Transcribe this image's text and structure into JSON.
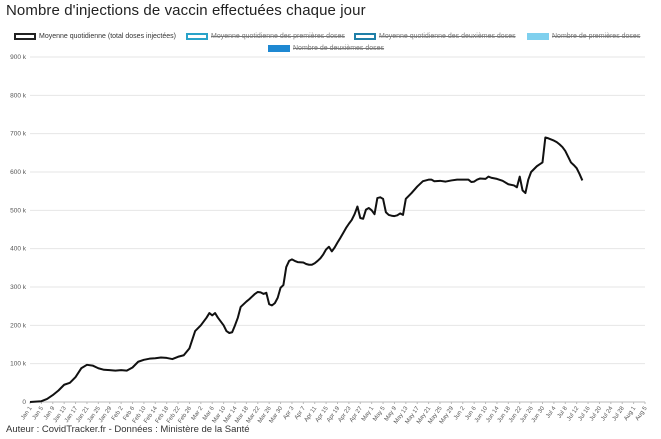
{
  "title": "Nombre d'injections de vaccin effectuées chaque jour",
  "credit": "Auteur : CovidTracker.fr - Données : Ministère de la Santé",
  "legend": [
    {
      "label": "Moyenne quotidienne (total doses injectées)",
      "style": "outline",
      "color": "#222222",
      "hidden": false
    },
    {
      "label": "Moyenne quotidienne des premières doses",
      "style": "outline",
      "color": "#29a3c9",
      "hidden": true
    },
    {
      "label": "Moyenne quotidienne des deuxièmes doses",
      "style": "outline",
      "color": "#1f7fa8",
      "hidden": true
    },
    {
      "label": "Nombre de premières doses",
      "style": "fill",
      "color": "#7fd0ee",
      "hidden": true
    },
    {
      "label": "Nombre de deuxièmes doses",
      "style": "fill",
      "color": "#1e88d2",
      "hidden": true
    }
  ],
  "chart_data": {
    "type": "line",
    "y_ticks": [
      "0",
      "100 k",
      "200 k",
      "300 k",
      "400 k",
      "500 k",
      "600 k",
      "700 k",
      "800 k",
      "900 k"
    ],
    "ylim": [
      0,
      900
    ],
    "x_ticks": [
      "Jan 1",
      "Jan 5",
      "Jan 9",
      "Jan 13",
      "Jan 17",
      "Jan 21",
      "Jan 25",
      "Jan 29",
      "Feb 2",
      "Feb 6",
      "Feb 10",
      "Feb 14",
      "Feb 18",
      "Feb 22",
      "Feb 26",
      "Mar 2",
      "Mar 6",
      "Mar 10",
      "Mar 14",
      "Mar 18",
      "Mar 22",
      "Mar 26",
      "Mar 30",
      "Apr 3",
      "Apr 7",
      "Apr 11",
      "Apr 15",
      "Apr 19",
      "Apr 23",
      "Apr 27",
      "May 1",
      "May 5",
      "May 9",
      "May 13",
      "May 17",
      "May 21",
      "May 25",
      "May 29",
      "Jun 2",
      "Jun 6",
      "Jun 10",
      "Jun 14",
      "Jun 18",
      "Jun 22",
      "Jun 26",
      "Jun 30",
      "Jul 4",
      "Jul 8",
      "Jul 12",
      "Jul 16",
      "Jul 20",
      "Jul 24",
      "Jul 28",
      "Aug 1",
      "Aug 5"
    ],
    "grid": true,
    "series": [
      {
        "name": "Moyenne quotidienne (total doses injectées)",
        "color": "#111111",
        "points": [
          [
            0,
            0
          ],
          [
            4,
            2
          ],
          [
            6,
            8
          ],
          [
            8,
            18
          ],
          [
            10,
            30
          ],
          [
            12,
            45
          ],
          [
            14,
            50
          ],
          [
            16,
            65
          ],
          [
            18,
            88
          ],
          [
            20,
            97
          ],
          [
            22,
            95
          ],
          [
            24,
            88
          ],
          [
            26,
            84
          ],
          [
            28,
            83
          ],
          [
            30,
            82
          ],
          [
            32,
            83
          ],
          [
            34,
            82
          ],
          [
            36,
            90
          ],
          [
            38,
            105
          ],
          [
            40,
            110
          ],
          [
            42,
            113
          ],
          [
            44,
            114
          ],
          [
            46,
            116
          ],
          [
            48,
            115
          ],
          [
            50,
            112
          ],
          [
            52,
            118
          ],
          [
            54,
            122
          ],
          [
            56,
            140
          ],
          [
            58,
            185
          ],
          [
            60,
            200
          ],
          [
            62,
            220
          ],
          [
            63,
            232
          ],
          [
            64,
            226
          ],
          [
            65,
            232
          ],
          [
            66,
            220
          ],
          [
            68,
            200
          ],
          [
            69,
            185
          ],
          [
            70,
            180
          ],
          [
            71,
            182
          ],
          [
            72,
            200
          ],
          [
            73,
            220
          ],
          [
            74,
            248
          ],
          [
            76,
            262
          ],
          [
            77,
            268
          ],
          [
            78,
            275
          ],
          [
            79,
            282
          ],
          [
            80,
            287
          ],
          [
            81,
            286
          ],
          [
            82,
            282
          ],
          [
            83,
            285
          ],
          [
            84,
            255
          ],
          [
            85,
            252
          ],
          [
            86,
            258
          ],
          [
            87,
            272
          ],
          [
            88,
            298
          ],
          [
            89,
            305
          ],
          [
            90,
            352
          ],
          [
            91,
            368
          ],
          [
            92,
            372
          ],
          [
            93,
            368
          ],
          [
            94,
            365
          ],
          [
            96,
            364
          ],
          [
            97,
            360
          ],
          [
            98,
            358
          ],
          [
            99,
            358
          ],
          [
            100,
            362
          ],
          [
            101,
            368
          ],
          [
            102,
            375
          ],
          [
            103,
            385
          ],
          [
            104,
            398
          ],
          [
            105,
            405
          ],
          [
            106,
            393
          ],
          [
            107,
            403
          ],
          [
            108,
            416
          ],
          [
            109,
            428
          ],
          [
            110,
            441
          ],
          [
            111,
            454
          ],
          [
            112,
            465
          ],
          [
            113,
            475
          ],
          [
            114,
            490
          ],
          [
            115,
            510
          ],
          [
            116,
            480
          ],
          [
            117,
            478
          ],
          [
            118,
            502
          ],
          [
            119,
            506
          ],
          [
            120,
            500
          ],
          [
            121,
            490
          ],
          [
            122,
            532
          ],
          [
            123,
            534
          ],
          [
            124,
            530
          ],
          [
            125,
            495
          ],
          [
            126,
            488
          ],
          [
            127,
            486
          ],
          [
            128,
            485
          ],
          [
            129,
            487
          ],
          [
            130,
            492
          ],
          [
            131,
            488
          ],
          [
            132,
            530
          ],
          [
            134,
            545
          ],
          [
            136,
            562
          ],
          [
            138,
            576
          ],
          [
            140,
            580
          ],
          [
            141,
            580
          ],
          [
            142,
            576
          ],
          [
            144,
            577
          ],
          [
            146,
            575
          ],
          [
            148,
            578
          ],
          [
            150,
            580
          ],
          [
            152,
            580
          ],
          [
            154,
            580
          ],
          [
            155,
            574
          ],
          [
            156,
            575
          ],
          [
            157,
            580
          ],
          [
            158,
            583
          ],
          [
            160,
            582
          ],
          [
            161,
            588
          ],
          [
            162,
            585
          ],
          [
            164,
            582
          ],
          [
            166,
            577
          ],
          [
            168,
            568
          ],
          [
            170,
            565
          ],
          [
            171,
            560
          ],
          [
            172,
            588
          ],
          [
            173,
            552
          ],
          [
            174,
            545
          ],
          [
            175,
            580
          ],
          [
            176,
            600
          ],
          [
            178,
            615
          ],
          [
            179,
            620
          ],
          [
            180,
            625
          ],
          [
            181,
            690
          ],
          [
            182,
            688
          ],
          [
            183,
            685
          ],
          [
            184,
            682
          ],
          [
            185,
            678
          ],
          [
            186,
            672
          ],
          [
            187,
            665
          ],
          [
            188,
            655
          ],
          [
            189,
            640
          ],
          [
            190,
            625
          ],
          [
            191,
            618
          ],
          [
            192,
            610
          ],
          [
            193,
            595
          ],
          [
            194,
            578
          ]
        ]
      }
    ]
  }
}
